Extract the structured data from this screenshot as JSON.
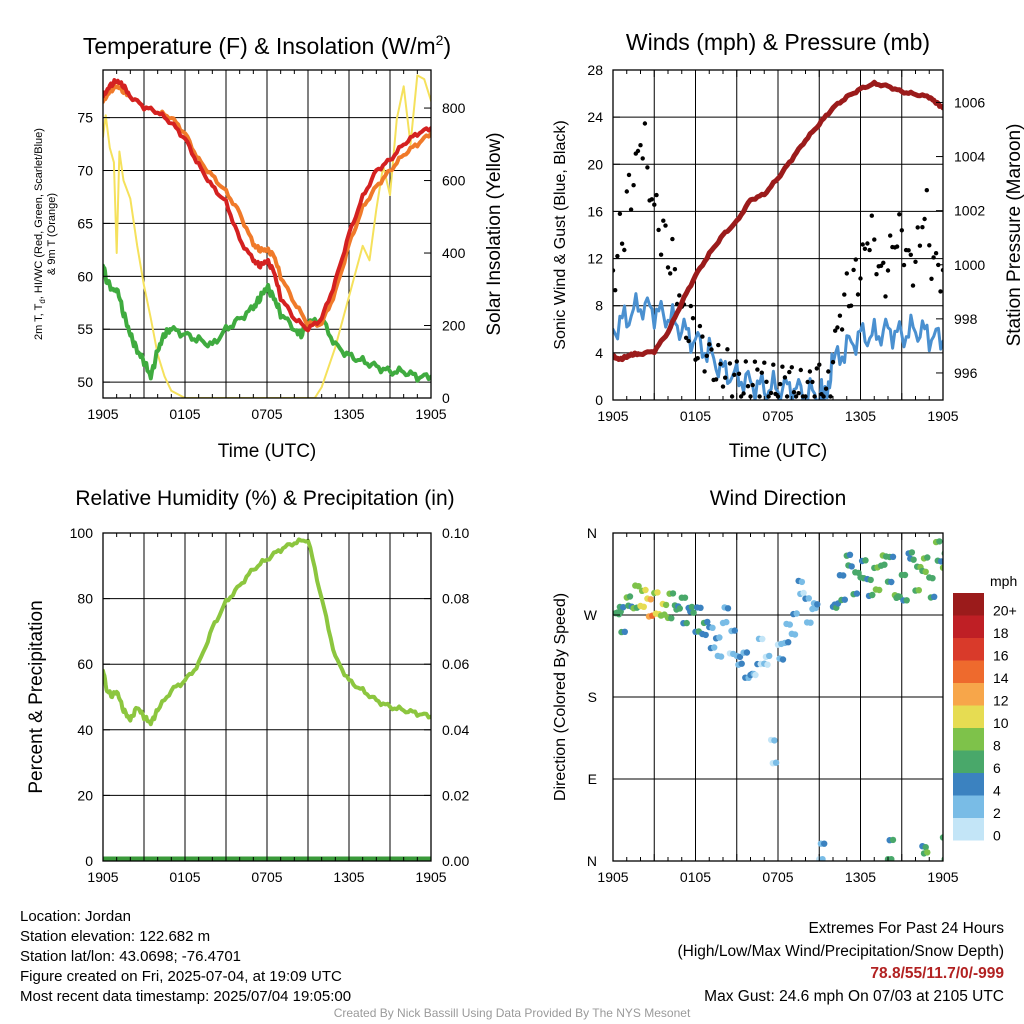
{
  "panels": {
    "temp": {
      "title": "Temperature (F) & Insolation (W/m",
      "title_sup": "2",
      "title_close": ")",
      "ylabel_left_line1": "2m T, T",
      "ylabel_left_sub": "d",
      "ylabel_left_rest": ", HI/WC (Red, Green, Scarlet/Blue)",
      "ylabel_left_line2": "& 9m T (Orange)",
      "ylabel_right": "Solar Insolation (Yellow)",
      "xlabel": "Time (UTC)",
      "left_ticks": [
        "50",
        "55",
        "60",
        "65",
        "70",
        "75"
      ],
      "right_ticks": [
        "0",
        "200",
        "400",
        "600",
        "800"
      ]
    },
    "wind": {
      "title": "Winds (mph) & Pressure (mb)",
      "ylabel_left": "Sonic Wind & Gust (Blue, Black)",
      "ylabel_right": "Station Pressure (Maroon)",
      "xlabel": "Time (UTC)",
      "left_ticks": [
        "0",
        "4",
        "8",
        "12",
        "16",
        "20",
        "24",
        "28"
      ],
      "right_ticks": [
        "996",
        "998",
        "1000",
        "1002",
        "1004",
        "1006"
      ]
    },
    "rh": {
      "title": "Relative Humidity (%) & Precipitation (in)",
      "ylabel_left": "Percent & Precipitation",
      "left_ticks": [
        "0",
        "20",
        "40",
        "60",
        "80",
        "100"
      ],
      "right_ticks": [
        "0.00",
        "0.02",
        "0.04",
        "0.06",
        "0.08",
        "0.10"
      ]
    },
    "dir": {
      "title": "Wind Direction",
      "ylabel_left": "Direction (Colored By Speed)",
      "dir_ticks": [
        "N",
        "E",
        "S",
        "W",
        "N"
      ],
      "legend_title": "mph",
      "legend_labels": [
        "20+",
        "18",
        "16",
        "14",
        "12",
        "10",
        "8",
        "6",
        "4",
        "2",
        "0"
      ]
    },
    "x_ticks": [
      "1905",
      "0105",
      "0705",
      "1305",
      "1905"
    ]
  },
  "colors": {
    "temp": "#d42121",
    "temp9m": "#f07a2a",
    "dewpoint": "#3fab3f",
    "insolation": "#f5e15c",
    "wind": "#4a90d0",
    "gust": "#000000",
    "pressure": "#9b1b1b",
    "rh": "#8cc63f",
    "precip": "#3a9a3a",
    "legend": [
      "#9b1b1b",
      "#bf1f25",
      "#d93a2a",
      "#ee6a2d",
      "#f7a64a",
      "#e6dc52",
      "#7ec24a",
      "#49a86a",
      "#3b82c0",
      "#79bce6",
      "#c3e5f7"
    ]
  },
  "chart_data": [
    {
      "type": "line",
      "title": "Temperature (F) & Insolation (W/m2)",
      "xlabel": "Time (UTC)",
      "x_unit": "hours since 2025-07-03 19:05 UTC",
      "ylabel": "2m T, Td, HI/WC (Red, Green, Scarlet/Blue) & 9m T (Orange)",
      "y2label": "Solar Insolation (Yellow)",
      "ylim": [
        48.5,
        79.5
      ],
      "y2lim": [
        0,
        905
      ],
      "series": [
        {
          "name": "2m T (Red)",
          "axis": "left",
          "x": [
            0,
            0.5,
            1,
            1.5,
            2,
            3,
            4,
            5,
            6,
            7,
            8,
            9,
            10,
            11,
            11.5,
            12,
            12.5,
            13,
            14,
            15,
            16,
            17,
            18,
            19,
            20,
            21,
            22,
            23,
            24
          ],
          "y": [
            77,
            78,
            78.5,
            78,
            77,
            76,
            75.5,
            74.5,
            73,
            70.5,
            68.5,
            67,
            63.5,
            61.5,
            61,
            61.5,
            60.5,
            58,
            56,
            55,
            56,
            59.5,
            64,
            67.5,
            70,
            71,
            72.5,
            73.5,
            74
          ]
        },
        {
          "name": "9m T (Orange)",
          "axis": "left",
          "x": [
            0,
            0.5,
            1,
            1.5,
            2,
            3,
            4,
            5,
            6,
            7,
            8,
            9,
            10,
            11,
            11.5,
            12,
            12.5,
            13,
            14,
            15,
            16,
            17,
            18,
            19,
            20,
            21,
            22,
            23,
            24
          ],
          "y": [
            76.5,
            77.5,
            78,
            77.5,
            77,
            76,
            75.5,
            75,
            73.5,
            71,
            69.5,
            68,
            66,
            63,
            62.5,
            62.5,
            62,
            60,
            57.5,
            55.5,
            55.5,
            58.5,
            63,
            66.5,
            68.5,
            70,
            71.5,
            72.5,
            73.5
          ]
        },
        {
          "name": "Td (Green)",
          "axis": "left",
          "x": [
            0,
            0.3,
            0.7,
            1,
            1.5,
            2,
            2.5,
            3,
            3.5,
            4,
            4.5,
            5,
            6,
            7,
            8,
            9,
            10,
            11,
            11.5,
            12,
            12.5,
            13,
            14,
            14.5,
            15,
            16,
            17,
            18,
            19,
            20,
            21,
            22,
            23,
            24
          ],
          "y": [
            61,
            59.5,
            58.5,
            59,
            56.5,
            54.5,
            53,
            52,
            50.5,
            53,
            54.5,
            55,
            54.5,
            54,
            53.5,
            55,
            56,
            57,
            58,
            59,
            58,
            56.5,
            55,
            54.5,
            55.5,
            56,
            53.5,
            52.5,
            52,
            51.5,
            51,
            51,
            50.5,
            50.5
          ]
        },
        {
          "name": "Insolation (Yellow)",
          "axis": "right",
          "x": [
            0,
            0.2,
            0.5,
            0.8,
            1,
            1.2,
            1.5,
            2,
            2.5,
            3,
            3.5,
            4,
            4.5,
            5,
            6,
            7,
            8,
            9,
            10,
            11,
            12,
            13,
            14,
            15,
            15.5,
            16,
            17,
            18,
            19,
            19.5,
            20,
            20.5,
            21,
            21.5,
            22,
            22.5,
            23,
            23.5,
            24
          ],
          "y": [
            720,
            780,
            690,
            650,
            400,
            680,
            600,
            550,
            420,
            310,
            220,
            120,
            60,
            20,
            0,
            0,
            0,
            0,
            0,
            0,
            0,
            0,
            0,
            0,
            0,
            30,
            140,
            280,
            420,
            380,
            520,
            640,
            560,
            770,
            860,
            700,
            890,
            880,
            820
          ]
        }
      ]
    },
    {
      "type": "line",
      "title": "Winds (mph) & Pressure (mb)",
      "xlabel": "Time (UTC)",
      "x_unit": "hours since 2025-07-03 19:05 UTC",
      "ylabel": "Sonic Wind & Gust (Blue, Black)",
      "y2label": "Station Pressure (Maroon)",
      "ylim": [
        0,
        28
      ],
      "y2lim": [
        995,
        1007.2
      ],
      "series": [
        {
          "name": "Sonic Wind (Blue)",
          "axis": "left",
          "x": [
            0,
            1,
            2,
            3,
            4,
            5,
            6,
            7,
            8,
            9,
            10,
            11,
            12,
            13,
            14,
            15,
            15.5,
            16,
            17,
            18,
            19,
            20,
            21,
            22,
            23,
            24
          ],
          "y": [
            6,
            7,
            8,
            7.5,
            7,
            6,
            5,
            4,
            2.5,
            2,
            1.5,
            1,
            1,
            1,
            0.5,
            0.5,
            0.2,
            3,
            4.5,
            5.5,
            5.5,
            6,
            5.5,
            6,
            5.5,
            5
          ]
        },
        {
          "name": "Gust (Black)",
          "axis": "left",
          "type": "scatter",
          "x": [
            0,
            0.5,
            1,
            1.5,
            2,
            2.5,
            3,
            3.5,
            4,
            4.5,
            5,
            5.5,
            6,
            6.5,
            7,
            7.5,
            8,
            8.5,
            9,
            9.5,
            10,
            10.5,
            11,
            11.5,
            12,
            12.5,
            13,
            13.5,
            14,
            14.5,
            15,
            15.5,
            16,
            16.5,
            17,
            17.5,
            18,
            18.5,
            19,
            19.5,
            20,
            20.5,
            21,
            21.5,
            22,
            22.5,
            23,
            23.5,
            24
          ],
          "y": [
            11,
            14,
            17.5,
            20,
            22,
            18,
            16,
            14,
            12,
            9.5,
            7,
            6.5,
            4.5,
            4,
            3.5,
            3,
            2.5,
            2,
            1.8,
            1.5,
            1.5,
            1.8,
            1.5,
            1.2,
            1.2,
            1.5,
            1,
            0.8,
            1,
            1.5,
            1.2,
            0.8,
            5,
            7.5,
            9,
            10.5,
            12,
            14,
            12,
            10.5,
            12.5,
            14,
            13,
            11.5,
            13,
            16,
            12,
            11,
            12
          ]
        },
        {
          "name": "Station Pressure (Maroon)",
          "axis": "right",
          "x": [
            0,
            0.5,
            1,
            1.5,
            2,
            3,
            4,
            5,
            6,
            7,
            8,
            9,
            10,
            11,
            12,
            13,
            14,
            15,
            16,
            17,
            18,
            19,
            20,
            21,
            22,
            23,
            23.5,
            24
          ],
          "y": [
            996.6,
            996.5,
            996.6,
            996.7,
            996.7,
            996.8,
            997.5,
            998.6,
            999.6,
            1000.4,
            1001.1,
            1001.6,
            1002.4,
            1002.6,
            1003.2,
            1003.9,
            1004.6,
            1005.2,
            1005.8,
            1006.2,
            1006.5,
            1006.7,
            1006.6,
            1006.4,
            1006.3,
            1006.2,
            1006.0,
            1005.8
          ]
        }
      ]
    },
    {
      "type": "line",
      "title": "Relative Humidity (%) & Precipitation (in)",
      "ylabel": "Percent & Precipitation",
      "x_unit": "hours since 2025-07-03 19:05 UTC",
      "ylim": [
        0,
        100
      ],
      "y2lim": [
        0,
        0.1
      ],
      "series": [
        {
          "name": "Relative Humidity",
          "axis": "left",
          "x": [
            0,
            0.3,
            0.6,
            1,
            1.5,
            2,
            2.5,
            3,
            3.5,
            4,
            5,
            6,
            7,
            8,
            9,
            10,
            11,
            12,
            13,
            14,
            15,
            16,
            17,
            18,
            19,
            20,
            21,
            22,
            23,
            24
          ],
          "y": [
            58,
            52,
            50.5,
            52,
            46,
            43,
            47,
            44,
            42,
            46,
            52,
            55,
            60,
            71,
            79,
            84,
            89,
            92,
            95,
            97,
            98,
            80,
            62,
            55,
            52,
            49,
            47,
            46,
            45,
            44
          ]
        },
        {
          "name": "Precipitation",
          "axis": "right",
          "x": [
            0,
            24
          ],
          "y": [
            0,
            0
          ]
        }
      ]
    },
    {
      "type": "scatter",
      "title": "Wind Direction",
      "ylabel": "Direction (Colored By Speed)",
      "x_unit": "hours since 2025-07-03 19:05 UTC",
      "ylim": [
        0,
        360
      ],
      "points": [
        [
          0.2,
          272,
          5
        ],
        [
          0.5,
          265,
          4
        ],
        [
          1,
          285,
          6
        ],
        [
          1.5,
          290,
          8
        ],
        [
          2,
          288,
          10
        ],
        [
          2.5,
          278,
          12
        ],
        [
          3,
          283,
          9
        ],
        [
          3.5,
          276,
          8
        ],
        [
          4,
          280,
          7
        ],
        [
          4.5,
          278,
          6
        ],
        [
          5,
          275,
          6
        ],
        [
          5.5,
          276,
          5
        ],
        [
          6,
          265,
          4
        ],
        [
          6.5,
          255,
          4
        ],
        [
          7,
          245,
          3
        ],
        [
          7.5,
          235,
          3
        ],
        [
          8,
          270,
          3
        ],
        [
          8.5,
          240,
          2
        ],
        [
          9,
          220,
          2
        ],
        [
          9.5,
          215,
          2
        ],
        [
          10,
          205,
          2
        ],
        [
          10.5,
          230,
          2
        ],
        [
          11,
          220,
          2
        ],
        [
          11.5,
          120,
          2
        ],
        [
          12,
          230,
          2
        ],
        [
          12.5,
          250,
          2
        ],
        [
          13,
          260,
          2
        ],
        [
          13.5,
          300,
          2
        ],
        [
          14,
          275,
          3
        ],
        [
          14.5,
          280,
          3
        ],
        [
          15,
          5,
          2
        ],
        [
          16,
          280,
          4
        ],
        [
          16.5,
          300,
          4
        ],
        [
          17,
          330,
          5
        ],
        [
          17.5,
          305,
          6
        ],
        [
          18,
          320,
          6
        ],
        [
          18.5,
          300,
          5
        ],
        [
          19,
          310,
          7
        ],
        [
          19.5,
          330,
          6
        ],
        [
          20,
          320,
          5
        ],
        [
          20.5,
          290,
          7
        ],
        [
          21,
          300,
          6
        ],
        [
          21.5,
          335,
          5
        ],
        [
          22,
          310,
          6
        ],
        [
          22.5,
          325,
          6
        ],
        [
          23,
          300,
          5
        ],
        [
          23.5,
          340,
          6
        ],
        [
          24,
          330,
          7
        ],
        [
          20,
          10,
          6
        ],
        [
          22.5,
          12,
          6
        ],
        [
          24,
          12,
          6
        ]
      ]
    }
  ],
  "info": {
    "location": "Location: Jordan",
    "elevation": "Station elevation: 122.682 m",
    "latlon": "Station lat/lon: 43.0698; -76.4701",
    "created": "Figure created on Fri, 2025-07-04, at 19:09 UTC",
    "recent": "Most recent data timestamp: 2025/07/04 19:05:00"
  },
  "extremes": {
    "heading": "Extremes For Past 24 Hours",
    "subheading": "(High/Low/Max Wind/Precipitation/Snow Depth)",
    "values": "78.8/55/11.7/0/-999",
    "max_gust": "Max Gust: 24.6 mph On 07/03 at 2105 UTC"
  },
  "credit": "Created By Nick Bassill Using Data Provided By The NYS Mesonet"
}
